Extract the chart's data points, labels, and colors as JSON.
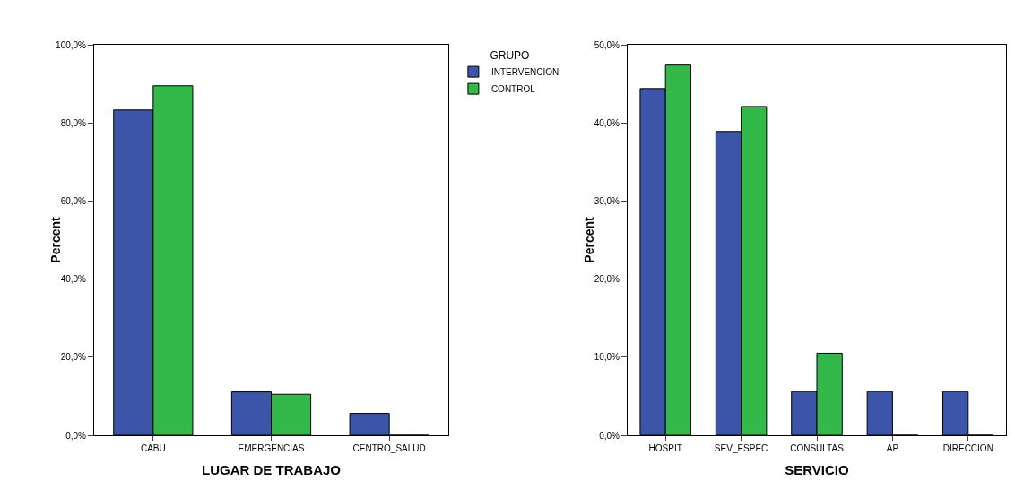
{
  "chart_data": [
    {
      "type": "bar",
      "categories": [
        "CABU",
        "EMERGENCIAS",
        "CENTRO_SALUD"
      ],
      "xlabel": "LUGAR DE TRABAJO",
      "ylabel": "Percent",
      "legend_title": "GRUPO",
      "legend": "top right",
      "series": [
        {
          "name": "INTERVENCION",
          "color": "#3d55a8",
          "values": [
            83.3,
            11.1,
            5.6
          ]
        },
        {
          "name": "CONTROL",
          "color": "#33b84a",
          "values": [
            89.5,
            10.5,
            0
          ]
        }
      ],
      "ylim": [
        0,
        100
      ],
      "yticks": [
        {
          "value": 0,
          "label": "0,0%"
        },
        {
          "value": 20,
          "label": "20,0%"
        },
        {
          "value": 40,
          "label": "40,0%"
        },
        {
          "value": 60,
          "label": "60,0%"
        },
        {
          "value": 80,
          "label": "80,0%"
        },
        {
          "value": 100,
          "label": "100,0%"
        }
      ]
    },
    {
      "type": "bar",
      "categories": [
        "HOSPIT",
        "SEV_ESPEC",
        "CONSULTAS",
        "AP",
        "DIRECCION"
      ],
      "xlabel": "SERVICIO",
      "ylabel": "Percent",
      "series": [
        {
          "color": "#3d55a8",
          "values": [
            44.4,
            38.9,
            5.6,
            5.6,
            5.6
          ]
        },
        {
          "color": "#33b84a",
          "values": [
            47.4,
            42.1,
            10.5,
            0,
            0
          ]
        }
      ],
      "ylim": [
        0,
        50
      ],
      "yticks": [
        {
          "value": 0,
          "label": "0,0%"
        },
        {
          "value": 10,
          "label": "10,0%"
        },
        {
          "value": 20,
          "label": "20,0%"
        },
        {
          "value": 30,
          "label": "30,0%"
        },
        {
          "value": 40,
          "label": "40,0%"
        },
        {
          "value": 50,
          "label": "50,0%"
        }
      ]
    }
  ]
}
